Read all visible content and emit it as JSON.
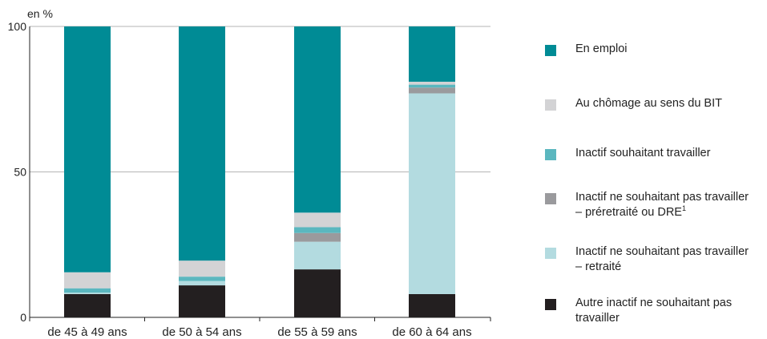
{
  "chart_data": {
    "type": "bar",
    "stacked": true,
    "unit_label": "en %",
    "categories": [
      "de 45 à 49 ans",
      "de 50 à 54 ans",
      "de 55 à 59 ans",
      "de 60 à 64 ans"
    ],
    "ylim": [
      0,
      100
    ],
    "yticks": [
      0,
      50,
      100
    ],
    "grid": true,
    "legend_position": "right",
    "series": [
      {
        "name": "Autre inactif ne souhaitant pas travailler",
        "color": "#231f20",
        "values": [
          8,
          11,
          16.5,
          8
        ]
      },
      {
        "name": "Inactif ne souhaitant pas travailler – retraité",
        "color": "#b3dbe0",
        "values": [
          0.5,
          1.5,
          9.5,
          69
        ]
      },
      {
        "name": "Inactif ne souhaitant pas travailler – préretraité ou DRE",
        "color": "#9a9a9d",
        "values": [
          0,
          0,
          3,
          2
        ]
      },
      {
        "name": "Inactif souhaitant travailler",
        "color": "#5bb7bf",
        "values": [
          1.5,
          1.5,
          2,
          1
        ]
      },
      {
        "name": "Au chômage au sens du BIT",
        "color": "#d3d3d5",
        "values": [
          5.5,
          5.5,
          5,
          1
        ]
      },
      {
        "name": "En emploi",
        "color": "#008b95",
        "values": [
          84.5,
          80.5,
          64,
          19
        ]
      }
    ]
  },
  "legend": [
    {
      "lines": [
        "En emploi"
      ],
      "sup": "",
      "color": "#008b95"
    },
    {
      "lines": [
        "Au chômage au sens du BIT"
      ],
      "sup": "",
      "color": "#d3d3d5"
    },
    {
      "lines": [
        "Inactif souhaitant travailler"
      ],
      "sup": "",
      "color": "#5bb7bf"
    },
    {
      "lines": [
        "Inactif ne souhaitant pas travailler",
        "– préretraité ou DRE"
      ],
      "sup": "1",
      "color": "#9a9a9d"
    },
    {
      "lines": [
        "Inactif ne souhaitant pas travailler",
        "– retraité"
      ],
      "sup": "",
      "color": "#b3dbe0"
    },
    {
      "lines": [
        "Autre inactif ne souhaitant pas",
        "travailler"
      ],
      "sup": "",
      "color": "#231f20"
    }
  ]
}
